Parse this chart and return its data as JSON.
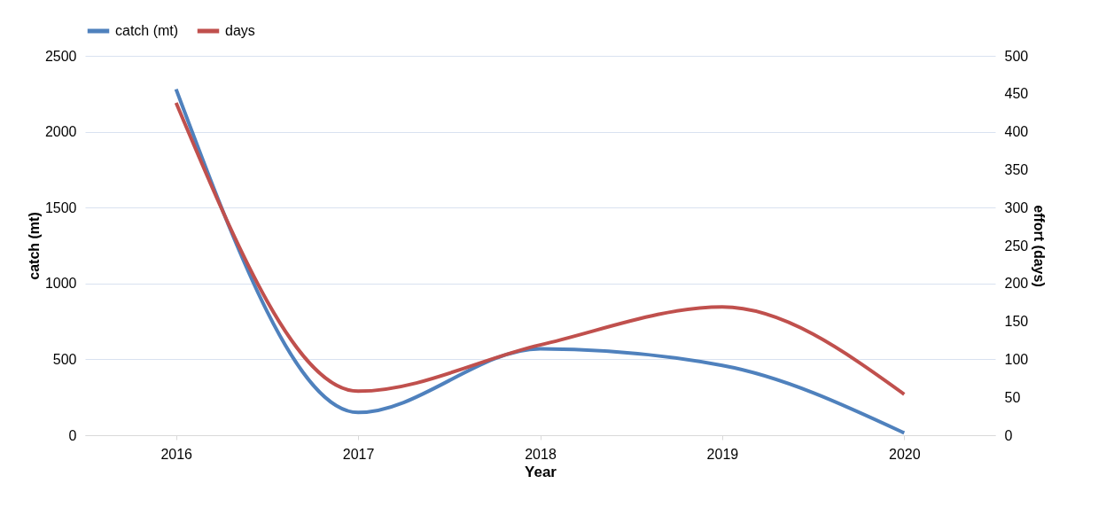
{
  "chart_data": {
    "type": "line",
    "xlabel": "Year",
    "ylabel": "catch (mt)",
    "y2label": "effort (days)",
    "categories": [
      "2016",
      "2017",
      "2018",
      "2019",
      "2020"
    ],
    "series": [
      {
        "name": "catch (mt)",
        "color": "#4f81bd",
        "values": [
          2280,
          150,
          570,
          460,
          15
        ]
      },
      {
        "name": "days",
        "color": "#c0504d",
        "axis": "y2",
        "values": [
          438,
          58,
          119,
          169,
          54
        ]
      }
    ],
    "ylim": [
      0,
      2500
    ],
    "yticks": [
      0,
      500,
      1000,
      1500,
      2000,
      2500
    ],
    "y2lim": [
      0,
      500
    ],
    "y2ticks": [
      0,
      50,
      100,
      150,
      200,
      250,
      300,
      350,
      400,
      450,
      500
    ],
    "grid": "y",
    "legend": "top"
  }
}
